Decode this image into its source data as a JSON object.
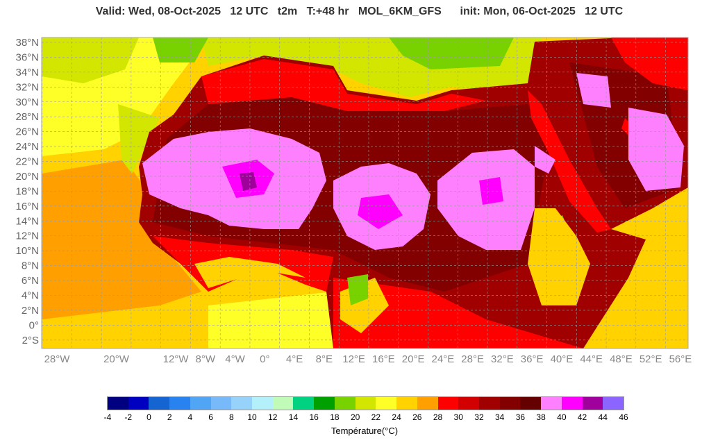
{
  "title": "Valid: Wed, 08-Oct-2025   12 UTC   t2m   T:+48 hr   MOL_6KM_GFS      init: Mon, 06-Oct-2025   12 UTC",
  "lat_labels": [
    "38°N",
    "36°N",
    "34°N",
    "32°N",
    "30°N",
    "28°N",
    "26°N",
    "24°N",
    "22°N",
    "20°N",
    "18°N",
    "16°N",
    "14°N",
    "12°N",
    "10°N",
    "8°N",
    "6°N",
    "4°N",
    "2°N",
    "0°",
    "2°S"
  ],
  "lat_values": [
    38,
    36,
    34,
    32,
    30,
    28,
    26,
    24,
    22,
    20,
    18,
    16,
    14,
    12,
    10,
    8,
    6,
    4,
    2,
    0,
    -2
  ],
  "lon_labels": [
    "28°W",
    "20°W",
    "12°W",
    "8°W",
    "4°W",
    "0°",
    "4°E",
    "8°E",
    "12°E",
    "16°E",
    "20°E",
    "24°E",
    "28°E",
    "32°E",
    "36°E",
    "40°E",
    "44°E",
    "48°E",
    "52°E",
    "56°E"
  ],
  "lon_values": [
    -28,
    -20,
    -12,
    -8,
    -4,
    0,
    4,
    8,
    12,
    16,
    20,
    24,
    28,
    32,
    36,
    40,
    44,
    48,
    52,
    56
  ],
  "colorbar": {
    "label": "Température(°C)",
    "ticks": [
      "-4",
      "-2",
      "0",
      "2",
      "4",
      "6",
      "8",
      "10",
      "12",
      "14",
      "16",
      "18",
      "20",
      "22",
      "24",
      "26",
      "28",
      "30",
      "32",
      "34",
      "36",
      "38",
      "40",
      "42",
      "44",
      "46"
    ],
    "colors": [
      "#000080",
      "#0000c0",
      "#1464d2",
      "#2882f0",
      "#50a5f5",
      "#78b9fa",
      "#96d2fa",
      "#b4f0fa",
      "#c0fcb8",
      "#00d282",
      "#00a000",
      "#78d200",
      "#d2e600",
      "#ffff28",
      "#ffd200",
      "#ffa000",
      "#ff0000",
      "#d20000",
      "#a00000",
      "#820000",
      "#640000",
      "#ff80ff",
      "#ff00ff",
      "#a0009b",
      "#8c64ff"
    ]
  }
}
